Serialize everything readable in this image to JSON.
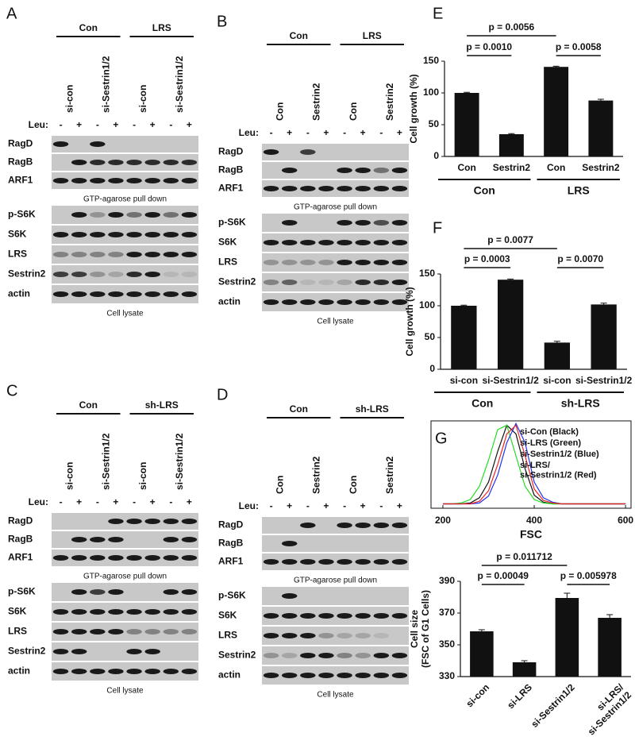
{
  "blots": [
    {
      "panel": "A",
      "groups": [
        "Con",
        "LRS"
      ],
      "lanes": [
        "si-con",
        "si-Sestrin1/2",
        "si-con",
        "si-Sestrin1/2"
      ],
      "leu_label": "Leu:",
      "leu": [
        "-",
        "+",
        "-",
        "+",
        "-",
        "+",
        "-",
        "+"
      ],
      "sections": [
        {
          "rows": [
            "RagD",
            "RagB",
            "ARF1"
          ],
          "caption": "GTP-agarose pull down"
        },
        {
          "rows": [
            "p-S6K",
            "S6K",
            "LRS",
            "Sestrin2",
            "actin"
          ],
          "caption": "Cell lysate"
        }
      ]
    },
    {
      "panel": "B",
      "groups": [
        "Con",
        "LRS"
      ],
      "lanes": [
        "Con",
        "Sestrin2",
        "Con",
        "Sestrin2"
      ],
      "leu_label": "Leu:",
      "leu": [
        "-",
        "+",
        "-",
        "+",
        "-",
        "+",
        "-",
        "+"
      ],
      "sections": [
        {
          "rows": [
            "RagD",
            "RagB",
            "ARF1"
          ],
          "caption": "GTP-agarose pull down"
        },
        {
          "rows": [
            "p-S6K",
            "S6K",
            "LRS",
            "Sestrin2",
            "actin"
          ],
          "caption": "Cell lysate"
        }
      ]
    },
    {
      "panel": "C",
      "groups": [
        "Con",
        "sh-LRS"
      ],
      "lanes": [
        "si-con",
        "si-Sestrin1/2",
        "si-con",
        "si-Sestrin1/2"
      ],
      "leu_label": "Leu:",
      "leu": [
        "-",
        "+",
        "-",
        "+",
        "-",
        "+",
        "-",
        "+"
      ],
      "sections": [
        {
          "rows": [
            "RagD",
            "RagB",
            "ARF1"
          ],
          "caption": "GTP-agarose pull down"
        },
        {
          "rows": [
            "p-S6K",
            "S6K",
            "LRS",
            "Sestrin2",
            "actin"
          ],
          "caption": "Cell lysate"
        }
      ]
    },
    {
      "panel": "D",
      "groups": [
        "Con",
        "sh-LRS"
      ],
      "lanes": [
        "Con",
        "Sestrin2",
        "Con",
        "Sestrin2"
      ],
      "leu_label": "Leu:",
      "leu": [
        "-",
        "+",
        "-",
        "+",
        "-",
        "+",
        "-",
        "+"
      ],
      "sections": [
        {
          "rows": [
            "RagD",
            "RagB",
            "ARF1"
          ],
          "caption": "GTP-agarose pull down"
        },
        {
          "rows": [
            "p-S6K",
            "S6K",
            "LRS",
            "Sestrin2",
            "actin"
          ],
          "caption": "Cell lysate"
        }
      ]
    }
  ],
  "chart_data": [
    {
      "type": "bar",
      "panel": "E",
      "ylabel": "Cell growth (%)",
      "categories": [
        "Con",
        "Sestrin2",
        "Con",
        "Sestrin2"
      ],
      "groups": [
        "Con",
        "LRS"
      ],
      "values": [
        100,
        35,
        141,
        88
      ],
      "errors": [
        1,
        1,
        1,
        2
      ],
      "color": "#111111",
      "ylim": [
        0,
        150
      ],
      "yticks": [
        0,
        50,
        100,
        150
      ],
      "annotations": [
        "p = 0.0056",
        "p = 0.0010",
        "p = 0.0058"
      ]
    },
    {
      "type": "bar",
      "panel": "F",
      "ylabel": "Cell growth (%)",
      "categories": [
        "si-con",
        "si-Sestrin1/2",
        "si-con",
        "si-Sestrin1/2"
      ],
      "groups": [
        "Con",
        "sh-LRS"
      ],
      "values": [
        100,
        141,
        42,
        102
      ],
      "errors": [
        1,
        1,
        2,
        2
      ],
      "color": "#111111",
      "ylim": [
        0,
        150
      ],
      "yticks": [
        0,
        50,
        100,
        150
      ],
      "annotations": [
        "p = 0.0077",
        "p = 0.0003",
        "p = 0.0070"
      ]
    },
    {
      "type": "line",
      "panel": "G",
      "xlabel": "FSC",
      "xlim": [
        174,
        612
      ],
      "xticks": [
        200,
        400,
        600
      ],
      "ylim": [
        0,
        100
      ],
      "x": [
        200,
        220,
        240,
        260,
        280,
        300,
        320,
        340,
        360,
        380,
        400,
        420,
        440,
        460,
        480,
        500,
        520,
        540,
        560,
        580,
        600
      ],
      "series": [
        {
          "name": "si-Con (Black)",
          "color": "#111111",
          "values": [
            5,
            5,
            5,
            6,
            12,
            30,
            65,
            95,
            85,
            45,
            15,
            7,
            5,
            5,
            5,
            5,
            5,
            5,
            5,
            5,
            5
          ]
        },
        {
          "name": "si-LRS (Green)",
          "color": "#22dd22",
          "values": [
            5,
            5,
            6,
            10,
            25,
            55,
            90,
            95,
            60,
            25,
            10,
            6,
            5,
            5,
            5,
            5,
            5,
            5,
            5,
            5,
            5
          ]
        },
        {
          "name": "si-Sestrin1/2 (Blue)",
          "color": "#2233ee",
          "values": [
            5,
            5,
            5,
            5,
            6,
            14,
            38,
            75,
            97,
            75,
            30,
            12,
            7,
            5,
            5,
            5,
            5,
            5,
            5,
            5,
            5
          ]
        },
        {
          "name": "si-LRS/\nsi-Sestrin1/2 (Red)",
          "color": "#ee2222",
          "values": [
            5,
            5,
            5,
            5,
            8,
            20,
            50,
            85,
            95,
            60,
            22,
            9,
            6,
            5,
            5,
            5,
            5,
            5,
            5,
            5,
            5
          ]
        }
      ]
    },
    {
      "type": "bar",
      "ylabel": "Cell size\n(FSC of G1 Cells)",
      "categories": [
        "si-con",
        "si-LRS",
        "si-Sestrin1/2",
        "si-LRS/\nsi-Sestrin1/2"
      ],
      "values": [
        358.5,
        339,
        379.5,
        367
      ],
      "errors": [
        1,
        1,
        3,
        2
      ],
      "color": "#111111",
      "ylim": [
        330,
        390
      ],
      "yticks": [
        330,
        350,
        370,
        390
      ],
      "annotations": [
        "p = 0.011712",
        "p = 0.00049",
        "p = 0.005978"
      ]
    }
  ]
}
